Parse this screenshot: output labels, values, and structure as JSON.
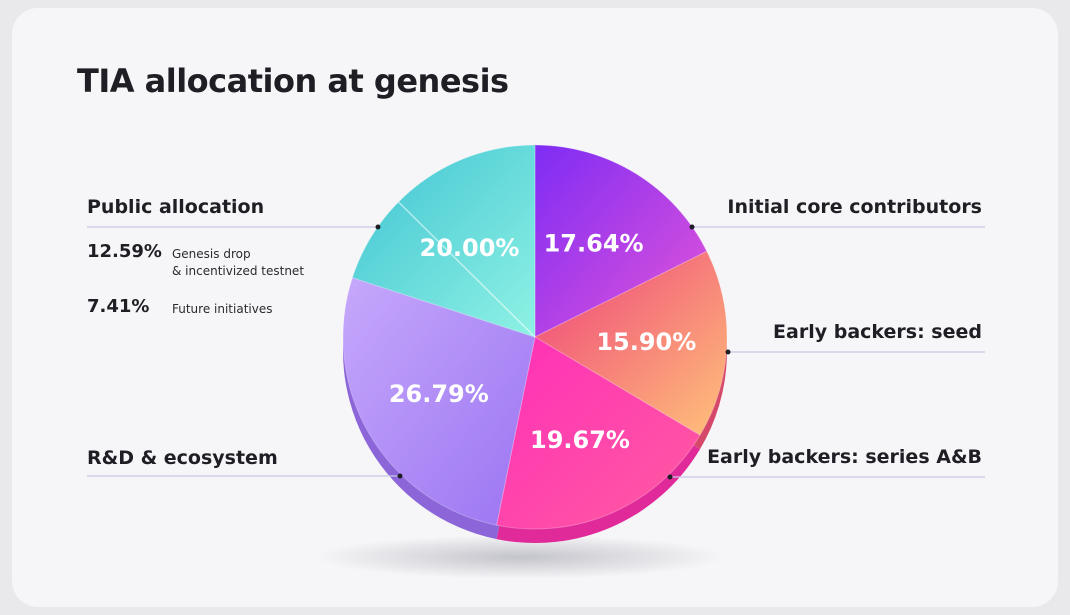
{
  "chart_data": {
    "type": "pie",
    "title": "TIA allocation at genesis",
    "slices": [
      {
        "label": "Initial core contributors",
        "value": 17.64,
        "display": "17.64%",
        "color": "#b03df0"
      },
      {
        "label": "Early backers: seed",
        "value": 15.9,
        "display": "15.90%",
        "color": "#f2567d"
      },
      {
        "label": "Early backers: series A&B",
        "value": 19.67,
        "display": "19.67%",
        "color": "#ff34b4"
      },
      {
        "label": "R&D & ecosystem",
        "value": 26.79,
        "display": "26.79%",
        "color": "#ad8cf7"
      },
      {
        "label": "Public allocation",
        "value": 20.0,
        "display": "20.00%",
        "color": "#4fd3d3"
      }
    ],
    "public_breakdown": [
      {
        "value": 12.59,
        "display": "12.59%",
        "desc_line1": "Genesis drop",
        "desc_line2": "& incentivized testnet"
      },
      {
        "value": 7.41,
        "display": "7.41%",
        "desc_line1": "Future initiatives",
        "desc_line2": ""
      }
    ],
    "legend_placement": "labels around pie"
  }
}
